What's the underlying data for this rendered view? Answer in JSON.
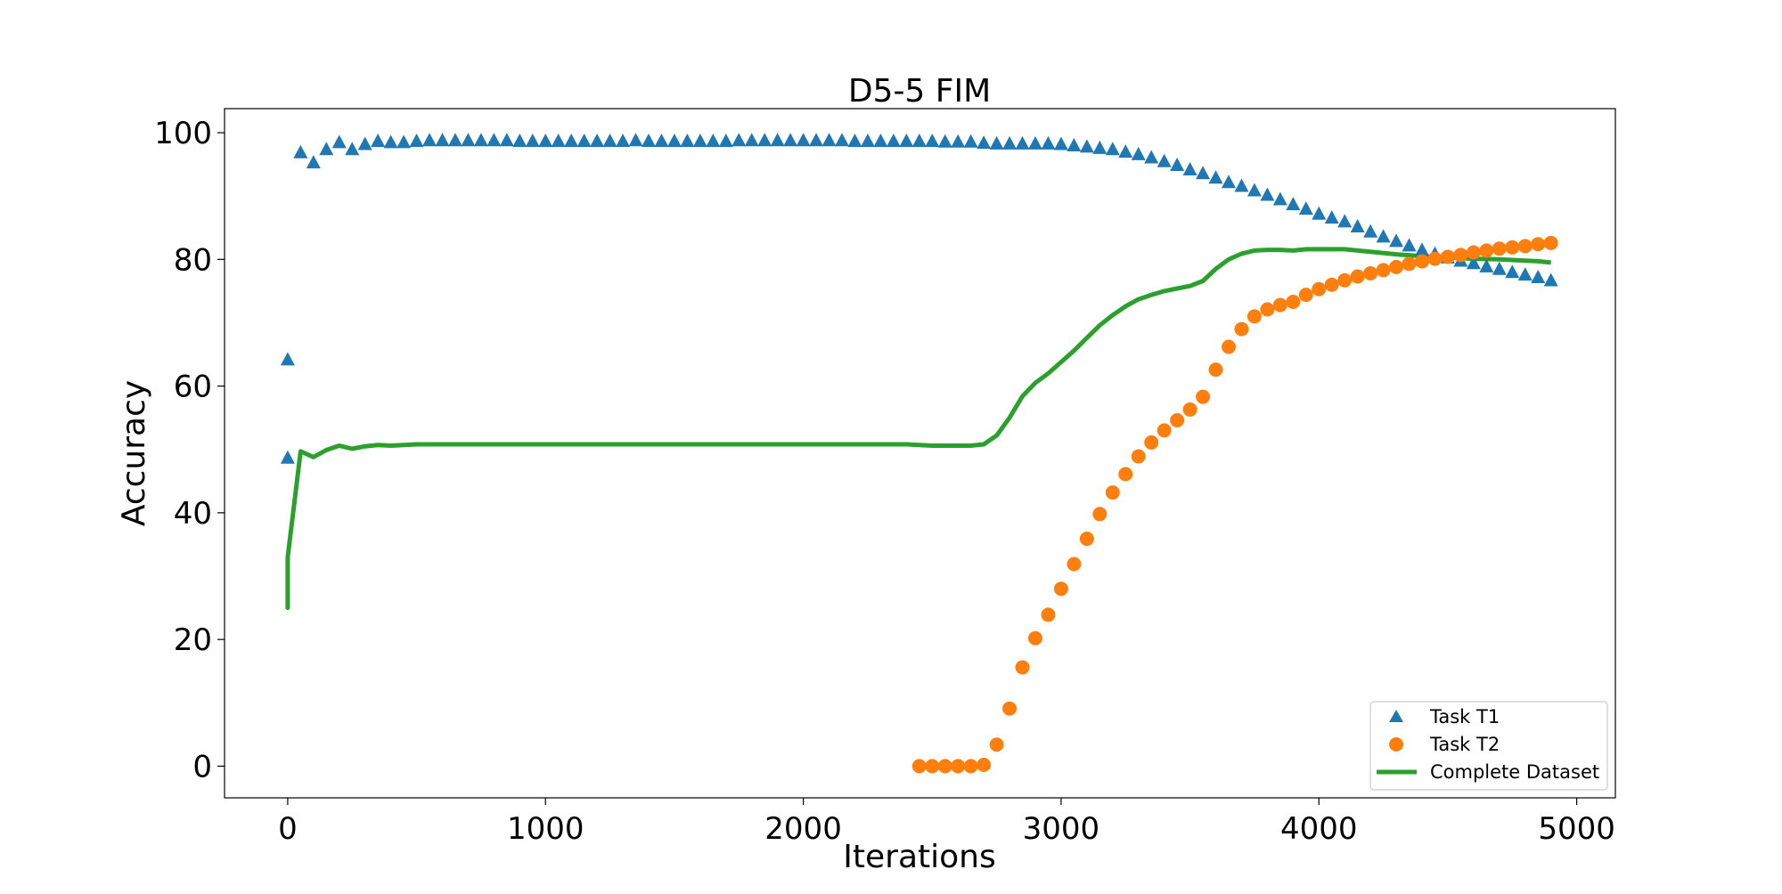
{
  "chart_data": {
    "type": "scatter",
    "title": "D5-5 FIM",
    "xlabel": "Iterations",
    "ylabel": "Accuracy",
    "xlim": [
      -245,
      5150
    ],
    "ylim": [
      -5,
      103.8
    ],
    "xticks": [
      0,
      1000,
      2000,
      3000,
      4000,
      5000
    ],
    "xtick_labels": [
      "0",
      "1000",
      "2000",
      "3000",
      "4000",
      "5000"
    ],
    "yticks": [
      0,
      20,
      40,
      60,
      80,
      100
    ],
    "ytick_labels": [
      "0",
      "20",
      "40",
      "60",
      "80",
      "100"
    ],
    "legend_position": "lower-right",
    "series": [
      {
        "name": "Task T1",
        "kind": "scatter",
        "marker": "triangle",
        "color": "#1f77b4",
        "x": [
          0,
          0,
          50,
          100,
          150,
          200,
          250,
          300,
          350,
          400,
          450,
          500,
          550,
          600,
          650,
          700,
          750,
          800,
          850,
          900,
          950,
          1000,
          1050,
          1100,
          1150,
          1200,
          1250,
          1300,
          1350,
          1400,
          1450,
          1500,
          1550,
          1600,
          1650,
          1700,
          1750,
          1800,
          1850,
          1900,
          1950,
          2000,
          2050,
          2100,
          2150,
          2200,
          2250,
          2300,
          2350,
          2400,
          2450,
          2500,
          2550,
          2600,
          2650,
          2700,
          2750,
          2800,
          2850,
          2900,
          2950,
          3000,
          3050,
          3100,
          3150,
          3200,
          3250,
          3300,
          3350,
          3400,
          3450,
          3500,
          3550,
          3600,
          3650,
          3700,
          3750,
          3800,
          3850,
          3900,
          3950,
          4000,
          4050,
          4100,
          4150,
          4200,
          4250,
          4300,
          4350,
          4400,
          4450,
          4500,
          4550,
          4600,
          4650,
          4700,
          4750,
          4800,
          4850,
          4900
        ],
        "y": [
          48.6,
          64.1,
          96.8,
          95.2,
          97.3,
          98.4,
          97.3,
          98.1,
          98.6,
          98.4,
          98.4,
          98.6,
          98.7,
          98.7,
          98.7,
          98.7,
          98.7,
          98.7,
          98.7,
          98.6,
          98.6,
          98.6,
          98.6,
          98.6,
          98.6,
          98.6,
          98.6,
          98.6,
          98.7,
          98.6,
          98.6,
          98.6,
          98.6,
          98.6,
          98.6,
          98.6,
          98.7,
          98.7,
          98.7,
          98.7,
          98.7,
          98.7,
          98.7,
          98.7,
          98.7,
          98.6,
          98.6,
          98.6,
          98.6,
          98.6,
          98.6,
          98.6,
          98.5,
          98.5,
          98.5,
          98.3,
          98.2,
          98.2,
          98.2,
          98.2,
          98.2,
          98.1,
          97.9,
          97.7,
          97.5,
          97.3,
          96.9,
          96.5,
          96.0,
          95.4,
          94.8,
          94.1,
          93.5,
          92.8,
          92.1,
          91.5,
          90.8,
          90.1,
          89.4,
          88.6,
          87.9,
          87.1,
          86.5,
          85.9,
          85.1,
          84.3,
          83.5,
          82.8,
          82.1,
          81.4,
          80.8,
          80.2,
          79.7,
          79.3,
          78.8,
          78.4,
          77.9,
          77.5,
          77.1,
          76.6
        ]
      },
      {
        "name": "Task T2",
        "kind": "scatter",
        "marker": "circle",
        "color": "#ff7f0e",
        "x": [
          2450,
          2500,
          2550,
          2600,
          2650,
          2700,
          2750,
          2800,
          2850,
          2900,
          2950,
          3000,
          3050,
          3100,
          3150,
          3200,
          3250,
          3300,
          3350,
          3400,
          3450,
          3500,
          3550,
          3600,
          3650,
          3700,
          3750,
          3800,
          3850,
          3900,
          3950,
          4000,
          4050,
          4100,
          4150,
          4200,
          4250,
          4300,
          4350,
          4400,
          4450,
          4500,
          4550,
          4600,
          4650,
          4700,
          4750,
          4800,
          4850,
          4900
        ],
        "y": [
          0.0,
          0.0,
          0.0,
          0.0,
          0.0,
          0.2,
          3.4,
          9.1,
          15.6,
          20.2,
          23.9,
          28.0,
          31.9,
          35.9,
          39.8,
          43.2,
          46.1,
          48.9,
          51.1,
          53.0,
          54.6,
          56.3,
          58.3,
          62.6,
          66.2,
          69.0,
          71.0,
          72.1,
          72.8,
          73.3,
          74.4,
          75.3,
          76.0,
          76.7,
          77.3,
          77.8,
          78.3,
          78.8,
          79.3,
          79.7,
          80.1,
          80.4,
          80.7,
          81.1,
          81.4,
          81.7,
          81.9,
          82.1,
          82.4,
          82.6
        ]
      },
      {
        "name": "Complete Dataset",
        "kind": "line",
        "color": "#2ca02c",
        "x": [
          0,
          0,
          0,
          50,
          100,
          150,
          200,
          250,
          300,
          350,
          400,
          500,
          600,
          700,
          1000,
          1500,
          2000,
          2200,
          2400,
          2500,
          2600,
          2650,
          2700,
          2750,
          2800,
          2850,
          2900,
          2950,
          3000,
          3050,
          3100,
          3150,
          3200,
          3250,
          3300,
          3350,
          3400,
          3450,
          3500,
          3550,
          3600,
          3650,
          3700,
          3750,
          3800,
          3850,
          3900,
          3950,
          4000,
          4050,
          4100,
          4200,
          4300,
          4400,
          4500,
          4600,
          4700,
          4750,
          4800,
          4850,
          4900
        ],
        "y": [
          33.0,
          25.0,
          33.0,
          49.7,
          48.8,
          49.9,
          50.6,
          50.1,
          50.5,
          50.7,
          50.6,
          50.8,
          50.8,
          50.8,
          50.8,
          50.8,
          50.8,
          50.8,
          50.8,
          50.6,
          50.6,
          50.6,
          50.8,
          52.2,
          55.0,
          58.4,
          60.5,
          62.0,
          63.8,
          65.6,
          67.6,
          69.6,
          71.2,
          72.6,
          73.7,
          74.4,
          75.0,
          75.4,
          75.8,
          76.6,
          78.5,
          80.0,
          80.9,
          81.4,
          81.5,
          81.5,
          81.4,
          81.6,
          81.6,
          81.6,
          81.6,
          81.2,
          80.8,
          80.5,
          80.3,
          80.1,
          80.0,
          79.9,
          79.8,
          79.7,
          79.5
        ]
      }
    ]
  }
}
